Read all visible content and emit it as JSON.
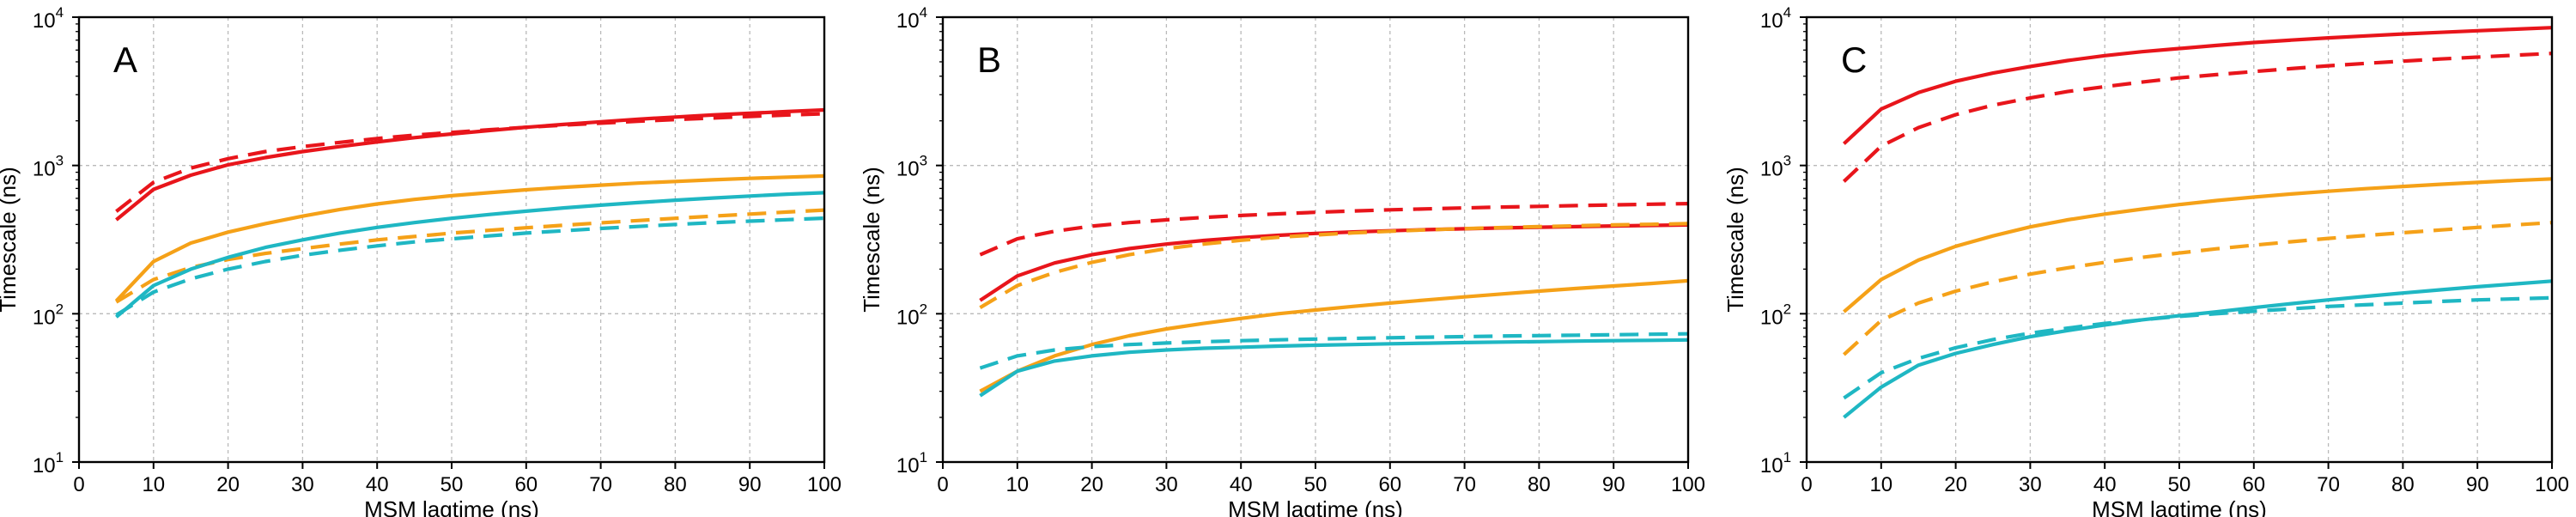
{
  "chart_data": [
    {
      "type": "line",
      "panel_label": "A",
      "xlabel": "MSM lagtime (ns)",
      "ylabel": "Timescale (ns)",
      "xlim": [
        0,
        100
      ],
      "ylim": [
        10,
        10000
      ],
      "yscale": "log",
      "grid": true,
      "xticks": [
        "0",
        "10",
        "20",
        "30",
        "40",
        "50",
        "60",
        "70",
        "80",
        "90",
        "100"
      ],
      "yticks": [
        {
          "base": "10",
          "exp": "1"
        },
        {
          "base": "10",
          "exp": "2"
        },
        {
          "base": "10",
          "exp": "3"
        },
        {
          "base": "10",
          "exp": "4"
        }
      ],
      "x": [
        5,
        10,
        15,
        20,
        25,
        30,
        35,
        40,
        45,
        50,
        55,
        60,
        65,
        70,
        75,
        80,
        85,
        90,
        95,
        100
      ],
      "series": [
        {
          "name": "red-solid",
          "color": "#e8151b",
          "dash": "solid",
          "values": [
            430,
            690,
            860,
            1010,
            1130,
            1240,
            1340,
            1440,
            1540,
            1630,
            1720,
            1810,
            1890,
            1970,
            2050,
            2120,
            2190,
            2250,
            2310,
            2370
          ]
        },
        {
          "name": "red-dashed",
          "color": "#e8151b",
          "dash": "dashed",
          "values": [
            490,
            770,
            960,
            1110,
            1240,
            1340,
            1430,
            1520,
            1600,
            1670,
            1740,
            1810,
            1870,
            1930,
            1990,
            2040,
            2090,
            2140,
            2190,
            2230
          ]
        },
        {
          "name": "orange-solid",
          "color": "#f5a118",
          "dash": "solid",
          "values": [
            122,
            225,
            300,
            355,
            405,
            455,
            505,
            550,
            590,
            625,
            655,
            685,
            712,
            737,
            760,
            780,
            800,
            818,
            834,
            850
          ]
        },
        {
          "name": "orange-dashed",
          "color": "#f5a118",
          "dash": "dashed",
          "values": [
            120,
            170,
            205,
            232,
            255,
            275,
            295,
            315,
            332,
            350,
            365,
            380,
            395,
            410,
            425,
            440,
            455,
            470,
            485,
            500
          ]
        },
        {
          "name": "cyan-solid",
          "color": "#1fb7c3",
          "dash": "solid",
          "values": [
            95,
            155,
            200,
            240,
            280,
            315,
            350,
            382,
            412,
            440,
            467,
            492,
            517,
            540,
            562,
            583,
            603,
            622,
            640,
            655
          ]
        },
        {
          "name": "cyan-dashed",
          "color": "#1fb7c3",
          "dash": "dashed",
          "values": [
            98,
            140,
            172,
            200,
            225,
            248,
            268,
            287,
            305,
            320,
            335,
            350,
            363,
            376,
            388,
            400,
            411,
            421,
            431,
            441
          ]
        }
      ]
    },
    {
      "type": "line",
      "panel_label": "B",
      "xlabel": "MSM lagtime (ns)",
      "ylabel": "Timescale (ns)",
      "xlim": [
        0,
        100
      ],
      "ylim": [
        10,
        10000
      ],
      "yscale": "log",
      "grid": true,
      "xticks": [
        "0",
        "10",
        "20",
        "30",
        "40",
        "50",
        "60",
        "70",
        "80",
        "90",
        "100"
      ],
      "yticks": [
        {
          "base": "10",
          "exp": "1"
        },
        {
          "base": "10",
          "exp": "2"
        },
        {
          "base": "10",
          "exp": "3"
        },
        {
          "base": "10",
          "exp": "4"
        }
      ],
      "x": [
        5,
        10,
        15,
        20,
        25,
        30,
        35,
        40,
        45,
        50,
        55,
        60,
        65,
        70,
        75,
        80,
        85,
        90,
        95,
        100
      ],
      "series": [
        {
          "name": "red-solid",
          "color": "#e8151b",
          "dash": "solid",
          "values": [
            123,
            180,
            220,
            250,
            275,
            295,
            312,
            326,
            338,
            348,
            356,
            363,
            369,
            374,
            379,
            383,
            387,
            391,
            394,
            397
          ]
        },
        {
          "name": "red-dashed",
          "color": "#e8151b",
          "dash": "dashed",
          "values": [
            250,
            320,
            360,
            390,
            412,
            430,
            446,
            460,
            472,
            483,
            493,
            502,
            510,
            517,
            524,
            530,
            536,
            542,
            548,
            553
          ]
        },
        {
          "name": "orange-solid",
          "color": "#f5a118",
          "dash": "solid",
          "values": [
            30,
            41,
            52,
            62,
            71,
            79,
            86,
            93,
            100,
            106,
            112,
            118,
            124,
            130,
            136,
            142,
            148,
            154,
            160,
            167
          ]
        },
        {
          "name": "orange-dashed",
          "color": "#f5a118",
          "dash": "dashed",
          "values": [
            110,
            155,
            190,
            222,
            250,
            275,
            295,
            313,
            328,
            340,
            351,
            360,
            368,
            375,
            381,
            387,
            392,
            397,
            401,
            405
          ]
        },
        {
          "name": "cyan-solid",
          "color": "#1fb7c3",
          "dash": "solid",
          "values": [
            28,
            41,
            48,
            52,
            55,
            57,
            58.5,
            59.5,
            60.5,
            61.3,
            62,
            62.7,
            63.3,
            63.9,
            64.4,
            64.9,
            65.4,
            65.8,
            66.2,
            66.6
          ]
        },
        {
          "name": "cyan-dashed",
          "color": "#1fb7c3",
          "dash": "dashed",
          "values": [
            43,
            52,
            57,
            60,
            62,
            63.5,
            64.8,
            65.8,
            66.7,
            67.5,
            68.2,
            68.9,
            69.5,
            70.1,
            70.7,
            71.2,
            71.7,
            72.2,
            72.7,
            73.2
          ]
        }
      ]
    },
    {
      "type": "line",
      "panel_label": "C",
      "xlabel": "MSM lagtime (ns)",
      "ylabel": "Timescale (ns)",
      "xlim": [
        0,
        100
      ],
      "ylim": [
        10,
        10000
      ],
      "yscale": "log",
      "grid": true,
      "xticks": [
        "0",
        "10",
        "20",
        "30",
        "40",
        "50",
        "60",
        "70",
        "80",
        "90",
        "100"
      ],
      "yticks": [
        {
          "base": "10",
          "exp": "1"
        },
        {
          "base": "10",
          "exp": "2"
        },
        {
          "base": "10",
          "exp": "3"
        },
        {
          "base": "10",
          "exp": "4"
        }
      ],
      "x": [
        5,
        10,
        15,
        20,
        25,
        30,
        35,
        40,
        45,
        50,
        55,
        60,
        65,
        70,
        75,
        80,
        85,
        90,
        95,
        100
      ],
      "series": [
        {
          "name": "red-solid",
          "color": "#e8151b",
          "dash": "solid",
          "values": [
            1400,
            2400,
            3100,
            3700,
            4200,
            4650,
            5100,
            5500,
            5850,
            6150,
            6450,
            6750,
            7000,
            7250,
            7480,
            7700,
            7900,
            8100,
            8300,
            8500
          ]
        },
        {
          "name": "red-dashed",
          "color": "#e8151b",
          "dash": "dashed",
          "values": [
            780,
            1350,
            1800,
            2200,
            2550,
            2850,
            3150,
            3400,
            3650,
            3900,
            4100,
            4300,
            4500,
            4700,
            4880,
            5050,
            5220,
            5380,
            5540,
            5700
          ]
        },
        {
          "name": "orange-solid",
          "color": "#f5a118",
          "dash": "solid",
          "values": [
            103,
            170,
            230,
            285,
            335,
            385,
            430,
            470,
            508,
            545,
            580,
            612,
            642,
            670,
            697,
            722,
            746,
            769,
            791,
            812
          ]
        },
        {
          "name": "orange-dashed",
          "color": "#f5a118",
          "dash": "dashed",
          "values": [
            53,
            90,
            118,
            142,
            164,
            185,
            204,
            222,
            240,
            257,
            274,
            290,
            306,
            322,
            337,
            352,
            367,
            382,
            397,
            412
          ]
        },
        {
          "name": "cyan-solid",
          "color": "#1fb7c3",
          "dash": "solid",
          "values": [
            20,
            32,
            45,
            54,
            62,
            70,
            77,
            84,
            91,
            97,
            103,
            110,
            117,
            124,
            131,
            138,
            145,
            152,
            159,
            166
          ]
        },
        {
          "name": "cyan-dashed",
          "color": "#1fb7c3",
          "dash": "dashed",
          "values": [
            27,
            40,
            50,
            59,
            67,
            74,
            80,
            86,
            91,
            96,
            100,
            104,
            108,
            112,
            115,
            118,
            121,
            124,
            126,
            128
          ]
        }
      ]
    }
  ]
}
